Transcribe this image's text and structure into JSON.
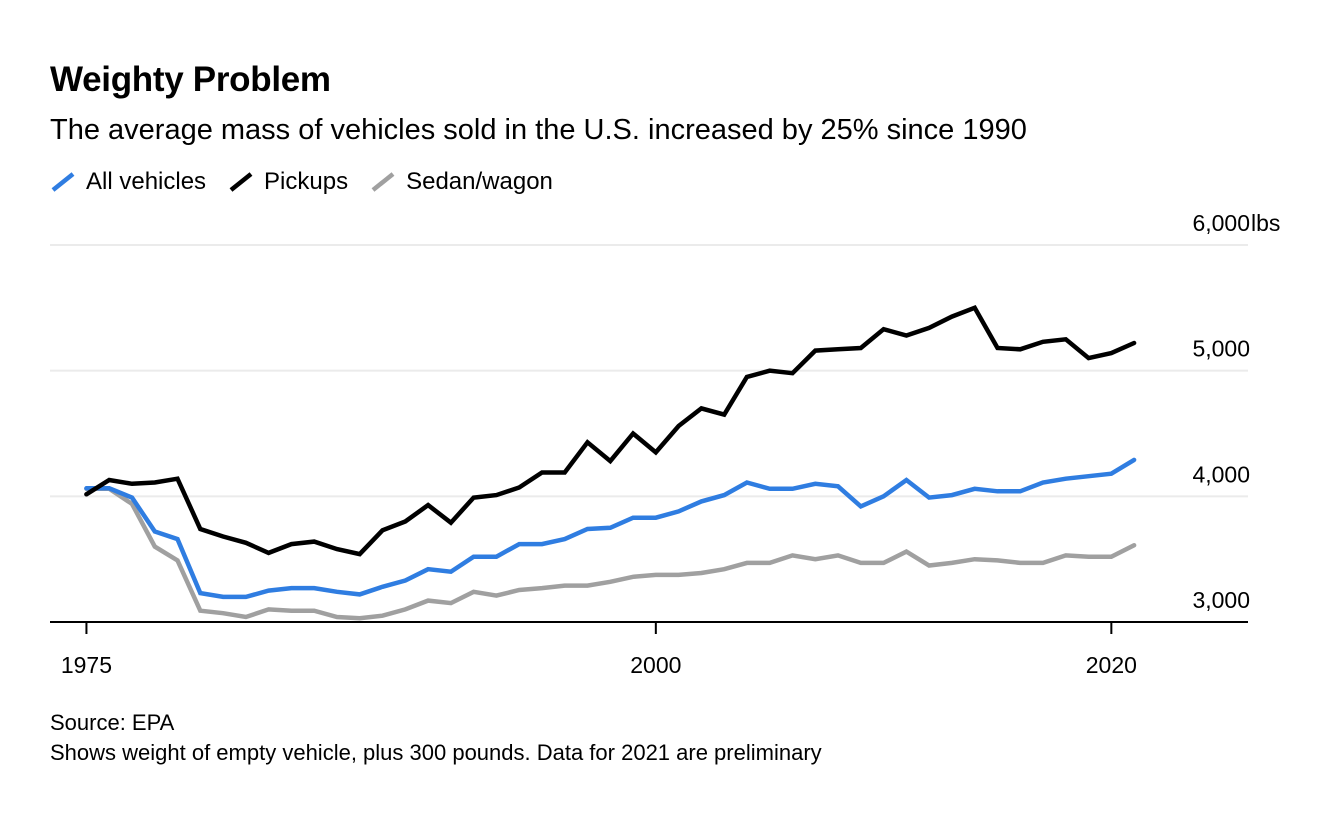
{
  "chart_data": {
    "type": "line",
    "title": "Weighty Problem",
    "subtitle": "The average mass of vehicles sold in the U.S. increased by 25% since 1990",
    "xlabel": "",
    "ylabel": "",
    "y_unit": "lbs",
    "xlim": [
      1973.4,
      2026
    ],
    "ylim": [
      3000,
      6000
    ],
    "x_ticks": [
      1975,
      2000,
      2020
    ],
    "x_tick_labels": [
      "1975",
      "2000",
      "2020"
    ],
    "y_ticks": [
      3000,
      4000,
      5000,
      6000
    ],
    "y_tick_labels": [
      "3,000",
      "4,000",
      "5,000",
      "6,000"
    ],
    "y_axis_position": "right",
    "grid": "horizontal",
    "legend_position": "top-left",
    "x": [
      1975,
      1976,
      1977,
      1978,
      1979,
      1980,
      1981,
      1982,
      1983,
      1984,
      1985,
      1986,
      1987,
      1988,
      1989,
      1990,
      1991,
      1992,
      1993,
      1994,
      1995,
      1996,
      1997,
      1998,
      1999,
      2000,
      2001,
      2002,
      2003,
      2004,
      2005,
      2006,
      2007,
      2008,
      2009,
      2010,
      2011,
      2012,
      2013,
      2014,
      2015,
      2016,
      2017,
      2018,
      2019,
      2020,
      2021
    ],
    "series": [
      {
        "name": "All vehicles",
        "color": "#2f7de1",
        "values": [
          4064,
          4064,
          3990,
          3720,
          3660,
          3230,
          3200,
          3200,
          3250,
          3270,
          3270,
          3240,
          3220,
          3280,
          3330,
          3420,
          3400,
          3520,
          3520,
          3620,
          3620,
          3660,
          3740,
          3750,
          3830,
          3830,
          3880,
          3960,
          4010,
          4110,
          4060,
          4060,
          4100,
          4080,
          3920,
          4000,
          4130,
          3990,
          4010,
          4060,
          4040,
          4040,
          4110,
          4140,
          4160,
          4180,
          4290
        ]
      },
      {
        "name": "Pickups",
        "color": "#000000",
        "values": [
          4016,
          4130,
          4100,
          4110,
          4140,
          3740,
          3680,
          3630,
          3550,
          3620,
          3640,
          3580,
          3540,
          3730,
          3800,
          3930,
          3790,
          3990,
          4010,
          4070,
          4190,
          4190,
          4430,
          4280,
          4500,
          4350,
          4560,
          4700,
          4650,
          4950,
          5000,
          4980,
          5160,
          5170,
          5180,
          5330,
          5280,
          5340,
          5430,
          5500,
          5180,
          5170,
          5230,
          5250,
          5100,
          5140,
          5220
        ]
      },
      {
        "name": "Sedan/wagon",
        "color": "#a0a0a0",
        "values": [
          4060,
          4060,
          3940,
          3600,
          3490,
          3090,
          3070,
          3040,
          3100,
          3090,
          3090,
          3040,
          3030,
          3050,
          3100,
          3170,
          3150,
          3240,
          3210,
          3255,
          3270,
          3290,
          3290,
          3320,
          3360,
          3375,
          3375,
          3390,
          3420,
          3470,
          3470,
          3530,
          3500,
          3530,
          3470,
          3470,
          3560,
          3450,
          3470,
          3500,
          3490,
          3470,
          3470,
          3530,
          3520,
          3520,
          3610
        ]
      }
    ],
    "source": "Source: EPA",
    "note": "Shows weight of empty vehicle, plus 300 pounds. Data for 2021 are preliminary"
  }
}
